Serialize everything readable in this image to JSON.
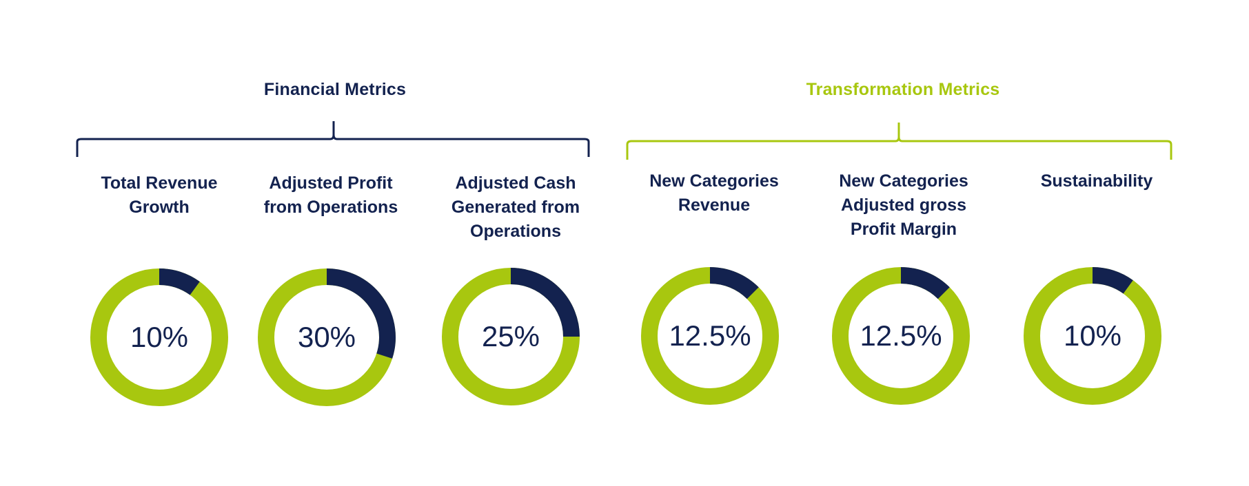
{
  "colors": {
    "navy": "#13224f",
    "lime": "#a8c70f"
  },
  "groups": [
    {
      "title": "Financial Metrics"
    },
    {
      "title": "Transformation Metrics"
    }
  ],
  "chart_data": {
    "type": "donut",
    "title": "",
    "unit": "%",
    "metrics": [
      {
        "group": "Financial Metrics",
        "label": "Total Revenue\nGrowth",
        "value": 10,
        "display": "10%"
      },
      {
        "group": "Financial Metrics",
        "label": "Adjusted Profit\nfrom Operations",
        "value": 30,
        "display": "30%"
      },
      {
        "group": "Financial Metrics",
        "label": "Adjusted Cash\nGenerated from\nOperations",
        "value": 25,
        "display": "25%"
      },
      {
        "group": "Transformation Metrics",
        "label": "New Categories\nRevenue",
        "value": 12.5,
        "display": "12.5%"
      },
      {
        "group": "Transformation Metrics",
        "label": "New Categories\nAdjusted gross\nProfit Margin",
        "value": 12.5,
        "display": "12.5%"
      },
      {
        "group": "Transformation Metrics",
        "label": "Sustainability",
        "value": 10,
        "display": "10%"
      }
    ]
  }
}
